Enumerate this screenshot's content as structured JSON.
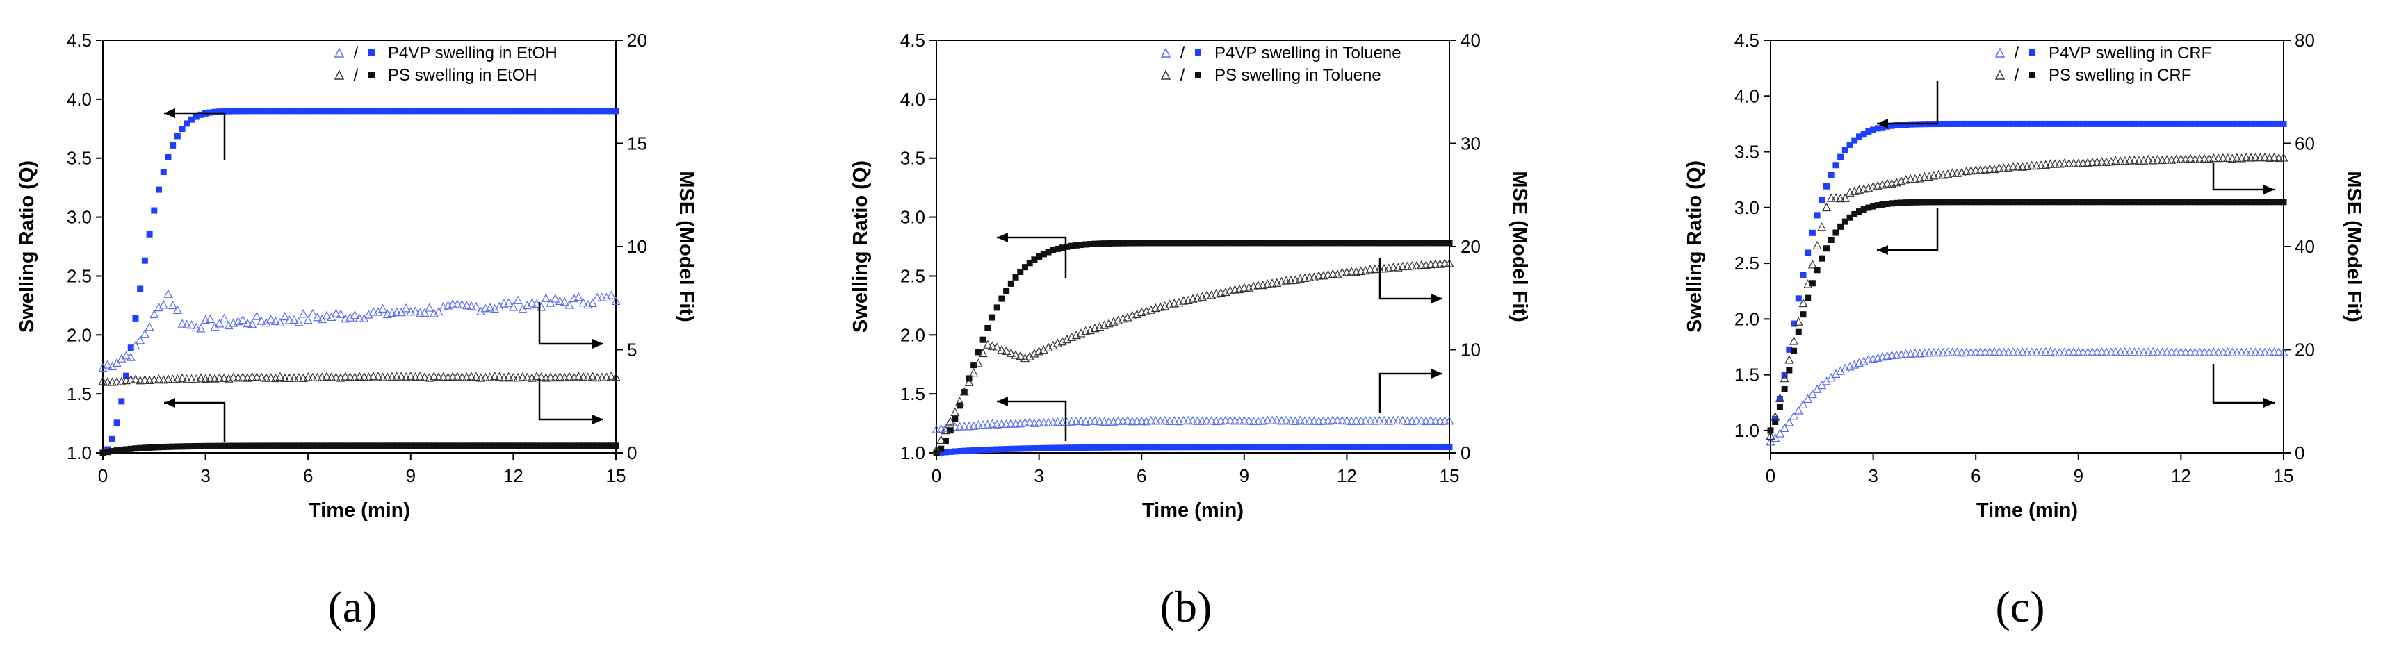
{
  "colors": {
    "blue": "#1f3fff",
    "open_blue": "#5a6cf0",
    "black": "#111111",
    "open_black": "#333333"
  },
  "chart_data": [
    {
      "type": "scatter",
      "panel_label": "(a)",
      "xlabel": "Time (min)",
      "ylabel_left": "Swelling Ratio (Q)",
      "ylabel_right": "MSE (Model Fit)",
      "xlim": [
        0,
        15
      ],
      "ylim_left": [
        1.0,
        4.5
      ],
      "ylim_right": [
        0,
        20
      ],
      "x_ticks": [
        "0",
        "3",
        "6",
        "9",
        "12",
        "15"
      ],
      "y_left_ticks": [
        "1.0",
        "1.5",
        "2.0",
        "2.5",
        "3.0",
        "3.5",
        "4.0",
        "4.5"
      ],
      "y_right_ticks": [
        "0",
        "5",
        "10",
        "15",
        "20"
      ],
      "legend": [
        {
          "sep": "/",
          "label": "P4VP swelling in EtOH"
        },
        {
          "sep": "/",
          "label": "PS swelling in EtOH"
        }
      ],
      "series": [
        {
          "name": "P4VP swelling ratio",
          "marker": "square-filled",
          "color": "blue",
          "kind": "sat",
          "params": [
            1.0,
            3.9,
            1.35,
            2.0
          ],
          "noise": 0
        },
        {
          "name": "P4VP MSE",
          "marker": "triangle-open",
          "color": "open_blue",
          "kind": "p4vp_mse_a",
          "params": [],
          "noise": 0.08
        },
        {
          "name": "PS swelling ratio",
          "marker": "square-filled",
          "color": "black",
          "kind": "sat",
          "params": [
            1.0,
            1.06,
            1.0,
            1.0
          ],
          "noise": 0
        },
        {
          "name": "PS MSE",
          "marker": "triangle-open",
          "color": "open_black",
          "kind": "sat",
          "params": [
            1.6,
            1.64,
            2.0,
            1.0
          ],
          "noise": 0.015
        }
      ]
    },
    {
      "type": "scatter",
      "panel_label": "(b)",
      "xlabel": "Time (min)",
      "ylabel_left": "Swelling Ratio (Q)",
      "ylabel_right": "MSE (Model Fit)",
      "xlim": [
        0,
        15
      ],
      "ylim_left": [
        1.0,
        4.5
      ],
      "ylim_right": [
        0,
        40
      ],
      "x_ticks": [
        "0",
        "3",
        "6",
        "9",
        "12",
        "15"
      ],
      "y_left_ticks": [
        "1.0",
        "1.5",
        "2.0",
        "2.5",
        "3.0",
        "3.5",
        "4.0",
        "4.5"
      ],
      "y_right_ticks": [
        "0",
        "10",
        "20",
        "30",
        "40"
      ],
      "legend": [
        {
          "sep": "/",
          "label": "P4VP swelling in Toluene"
        },
        {
          "sep": "/",
          "label": "PS swelling in Toluene"
        }
      ],
      "series": [
        {
          "name": "P4VP swelling ratio",
          "marker": "square-filled",
          "color": "blue",
          "kind": "sat",
          "params": [
            1.0,
            1.05,
            2.0,
            1.0
          ],
          "noise": 0
        },
        {
          "name": "P4VP MSE",
          "marker": "triangle-open",
          "color": "open_blue",
          "kind": "sat",
          "params": [
            1.2,
            1.27,
            2.0,
            1.0
          ],
          "noise": 0.01
        },
        {
          "name": "PS swelling ratio",
          "marker": "square-filled",
          "color": "black",
          "kind": "sat",
          "params": [
            1.0,
            2.78,
            1.6,
            1.6
          ],
          "noise": 0
        },
        {
          "name": "PS MSE",
          "marker": "triangle-open",
          "color": "open_black",
          "kind": "ps_mse_b",
          "params": [],
          "noise": 0.01
        }
      ]
    },
    {
      "type": "scatter",
      "panel_label": "(c)",
      "xlabel": "Time (min)",
      "ylabel_left": "Swelling Ratio (Q)",
      "ylabel_right": "MSE (Model Fit)",
      "xlim": [
        0,
        15
      ],
      "ylim_left": [
        0.8,
        4.5
      ],
      "ylim_right": [
        0,
        80
      ],
      "x_ticks": [
        "0",
        "3",
        "6",
        "9",
        "12",
        "15"
      ],
      "y_left_ticks": [
        "1.0",
        "1.5",
        "2.0",
        "2.5",
        "3.0",
        "3.5",
        "4.0",
        "4.5"
      ],
      "y_right_ticks": [
        "0",
        "20",
        "40",
        "60",
        "80"
      ],
      "legend": [
        {
          "sep": "/",
          "label": "P4VP swelling in CRF"
        },
        {
          "sep": "/",
          "label": "PS swelling in CRF"
        }
      ],
      "series": [
        {
          "name": "P4VP swelling ratio",
          "marker": "square-filled",
          "color": "blue",
          "kind": "sat",
          "params": [
            1.0,
            3.75,
            1.2,
            1.5
          ],
          "noise": 0
        },
        {
          "name": "P4VP MSE",
          "marker": "triangle-open",
          "color": "open_blue",
          "kind": "sat",
          "params": [
            0.9,
            1.7,
            1.5,
            1.4
          ],
          "noise": 0.006
        },
        {
          "name": "PS swelling ratio",
          "marker": "square-filled",
          "color": "black",
          "kind": "sat",
          "params": [
            1.0,
            3.05,
            1.2,
            1.5
          ],
          "noise": 0
        },
        {
          "name": "PS MSE",
          "marker": "triangle-open",
          "color": "open_black",
          "kind": "ps_mse_c",
          "params": [],
          "noise": 0.01
        }
      ]
    }
  ]
}
